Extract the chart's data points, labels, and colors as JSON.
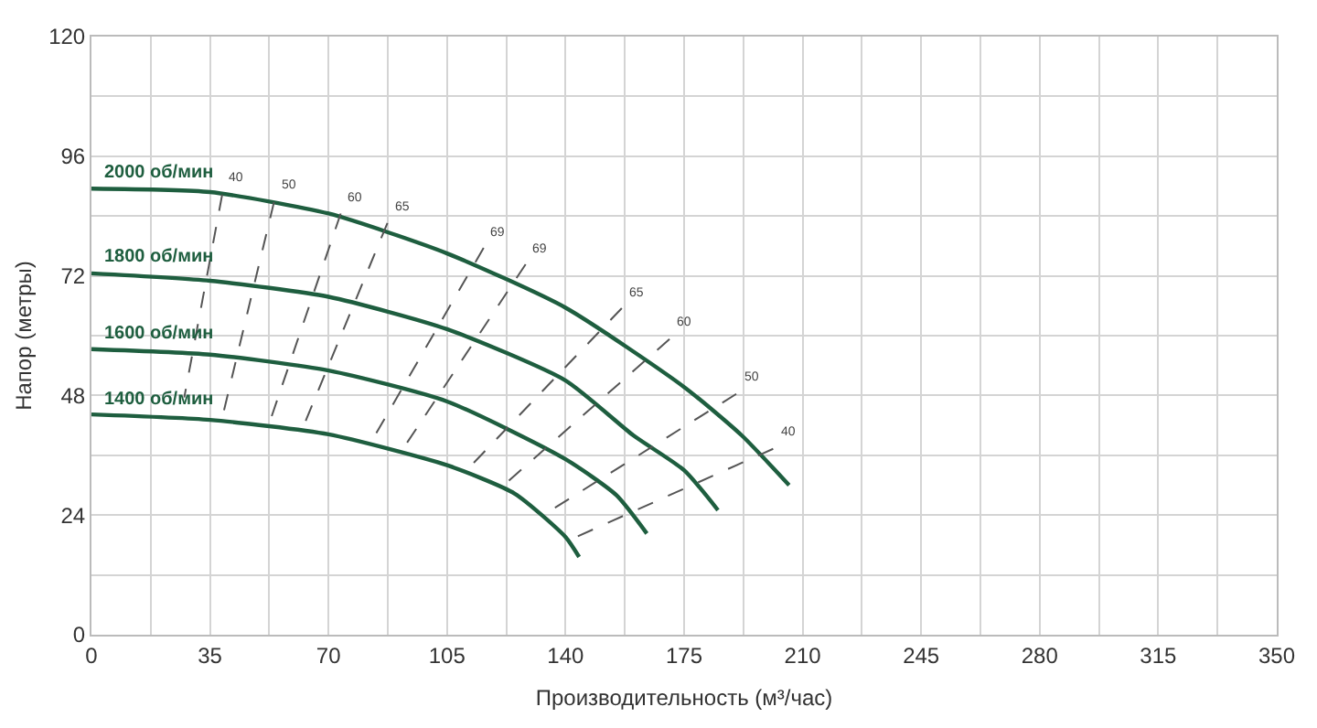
{
  "chart_data": {
    "type": "line",
    "xlabel": "Производительность (м³/час)",
    "ylabel": "Напор (метры)",
    "xlim": [
      0,
      350
    ],
    "xticks": [
      0,
      35,
      70,
      105,
      140,
      175,
      210,
      245,
      280,
      315,
      350
    ],
    "ylim": [
      0,
      120
    ],
    "yticks": [
      0,
      24,
      48,
      72,
      96,
      120
    ],
    "grid": true,
    "legend": false,
    "marker": "none",
    "series": [
      {
        "name": "2000 об/мин",
        "color": "#1e5e3f",
        "line_style": "solid",
        "x": [
          0,
          35,
          70,
          105,
          140,
          175,
          192,
          206
        ],
        "values": [
          89.5,
          88.8,
          84.5,
          76.5,
          65.6,
          49.7,
          40,
          30
        ]
      },
      {
        "name": "1800 об/мин",
        "color": "#1e5e3f",
        "line_style": "solid",
        "x": [
          0,
          35,
          70,
          105,
          140,
          160,
          175,
          185
        ],
        "values": [
          72.5,
          71,
          67.8,
          61.3,
          51,
          40,
          33,
          25
        ]
      },
      {
        "name": "1600 об/мин",
        "color": "#1e5e3f",
        "line_style": "solid",
        "x": [
          0,
          35,
          70,
          105,
          140,
          155,
          164
        ],
        "values": [
          57.3,
          56.2,
          53,
          46.8,
          35.2,
          28,
          20.3
        ]
      },
      {
        "name": "1400 об/мин",
        "color": "#1e5e3f",
        "line_style": "solid",
        "x": [
          0,
          35,
          70,
          105,
          125,
          140,
          144
        ],
        "values": [
          44.2,
          43.1,
          40.2,
          34,
          28.3,
          19.6,
          15.6
        ]
      },
      {
        "name": "40",
        "color": "#555555",
        "line_style": "dashed",
        "x": [
          38.6,
          27.4
        ],
        "values": [
          88.3,
          47.6
        ]
      },
      {
        "name": "50",
        "color": "#555555",
        "line_style": "dashed",
        "x": [
          53.9,
          38.6
        ],
        "values": [
          86.8,
          43.5
        ]
      },
      {
        "name": "60",
        "color": "#555555",
        "line_style": "dashed",
        "x": [
          73.6,
          52.4
        ],
        "values": [
          84.5,
          42.2
        ]
      },
      {
        "name": "65",
        "color": "#555555",
        "line_style": "dashed",
        "x": [
          87.4,
          62.1
        ],
        "values": [
          82.6,
          41.0
        ]
      },
      {
        "name": "69",
        "color": "#555555",
        "line_style": "dashed",
        "x": [
          115.8,
          82.1
        ],
        "values": [
          77.6,
          38.1
        ]
      },
      {
        "name": "69",
        "color": "#555555",
        "line_style": "dashed",
        "x": [
          128.2,
          91.5
        ],
        "values": [
          74.3,
          36.8
        ]
      },
      {
        "name": "65",
        "color": "#555555",
        "line_style": "dashed",
        "x": [
          156.6,
          109.8
        ],
        "values": [
          65.5,
          32.3
        ]
      },
      {
        "name": "60",
        "color": "#555555",
        "line_style": "dashed",
        "x": [
          170.7,
          120.9
        ],
        "values": [
          59.3,
          29.5
        ]
      },
      {
        "name": "50",
        "color": "#555555",
        "line_style": "dashed",
        "x": [
          190.4,
          134.1
        ],
        "values": [
          48.3,
          24.3
        ]
      },
      {
        "name": "40",
        "color": "#555555",
        "line_style": "dashed",
        "x": [
          201.3,
          141.8
        ],
        "values": [
          37.3,
          19.2
        ]
      }
    ]
  }
}
